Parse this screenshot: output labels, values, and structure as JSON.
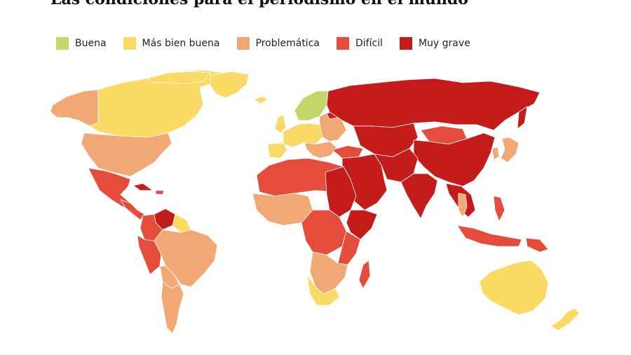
{
  "title": "Las condiciones para el periodismo en el mundo",
  "legend": [
    {
      "label": "Buena",
      "color": "#c2d66a"
    },
    {
      "label": "Más bien buena",
      "color": "#fbd965"
    },
    {
      "label": "Problemática",
      "color": "#f2a874"
    },
    {
      "label": "Difícil",
      "color": "#e64c3b"
    },
    {
      "label": "Muy grave",
      "color": "#c41b1b"
    }
  ],
  "colors": {
    "ocean": "#ffffff",
    "border": "#ffffff"
  }
}
